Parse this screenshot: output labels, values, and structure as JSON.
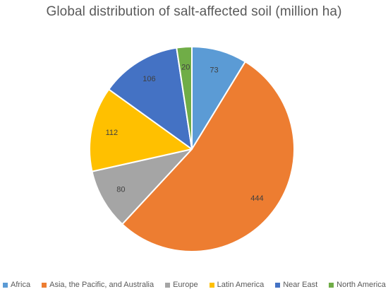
{
  "chart_data": {
    "type": "pie",
    "title": "Global distribution of salt-affected soil (million ha)",
    "categories": [
      "Africa",
      "Asia, the Pacific, and Australia",
      "Europe",
      "Latin America",
      "Near East",
      "North America"
    ],
    "values": [
      73,
      444,
      80,
      112,
      106,
      20
    ],
    "colors": [
      "#5b9bd5",
      "#ed7d31",
      "#a5a5a5",
      "#ffc000",
      "#4472c4",
      "#70ad47"
    ],
    "start_angle_deg": 0,
    "direction": "clockwise",
    "data_labels": true,
    "legend_position": "bottom"
  }
}
